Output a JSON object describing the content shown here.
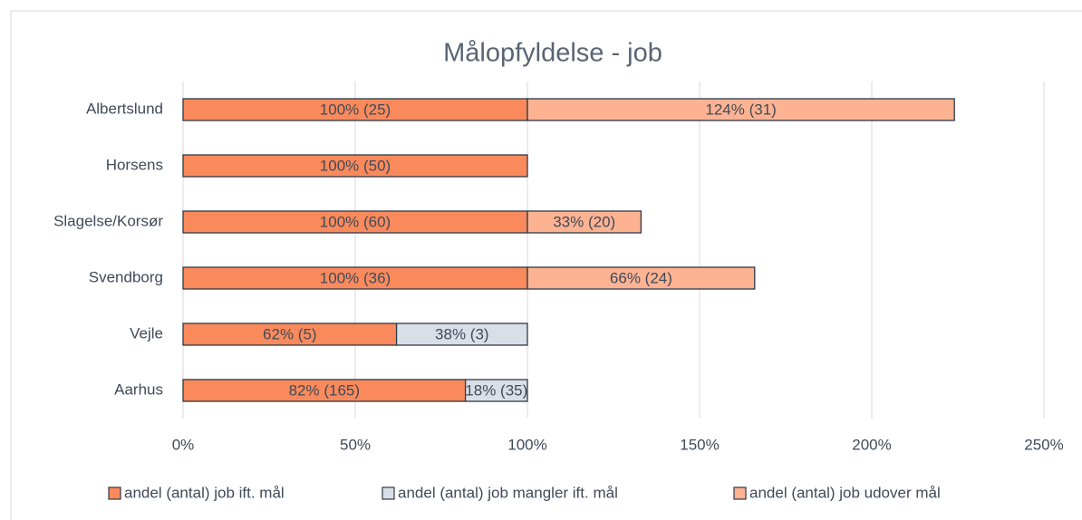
{
  "chart_data": {
    "type": "bar",
    "orientation": "horizontal",
    "stacked": true,
    "title": "Målopfyldelse - job",
    "categories": [
      "Albertslund",
      "Horsens",
      "Slagelse/Korsør",
      "Svendborg",
      "Vejle",
      "Aarhus"
    ],
    "series": [
      {
        "name": "andel (antal) job ift. mål",
        "color": "#fa8a5c",
        "values": [
          100,
          100,
          100,
          100,
          62,
          82
        ],
        "value_labels": [
          "100% (25)",
          "100% (50)",
          "100% (60)",
          "100% (36)",
          "62% (5)",
          "82% (165)"
        ]
      },
      {
        "name": "andel (antal) job mangler ift. mål",
        "color": "#d9dfe7",
        "values": [
          null,
          null,
          null,
          null,
          38,
          18
        ],
        "value_labels": [
          null,
          null,
          null,
          null,
          "38% (3)",
          "18% (35)"
        ]
      },
      {
        "name": "andel (antal) job udover mål",
        "color": "#fdb292",
        "values": [
          124,
          null,
          33,
          66,
          null,
          null
        ],
        "value_labels": [
          "124% (31)",
          null,
          "33% (20)",
          "66% (24)",
          null,
          null
        ]
      }
    ],
    "xlim": [
      0,
      250
    ],
    "xticks": [
      {
        "value": 0,
        "label": "0%"
      },
      {
        "value": 50,
        "label": "50%"
      },
      {
        "value": 100,
        "label": "100%"
      },
      {
        "value": 150,
        "label": "150%"
      },
      {
        "value": 200,
        "label": "200%"
      },
      {
        "value": 250,
        "label": "250%"
      }
    ],
    "grid": true,
    "legend": "bottom"
  }
}
